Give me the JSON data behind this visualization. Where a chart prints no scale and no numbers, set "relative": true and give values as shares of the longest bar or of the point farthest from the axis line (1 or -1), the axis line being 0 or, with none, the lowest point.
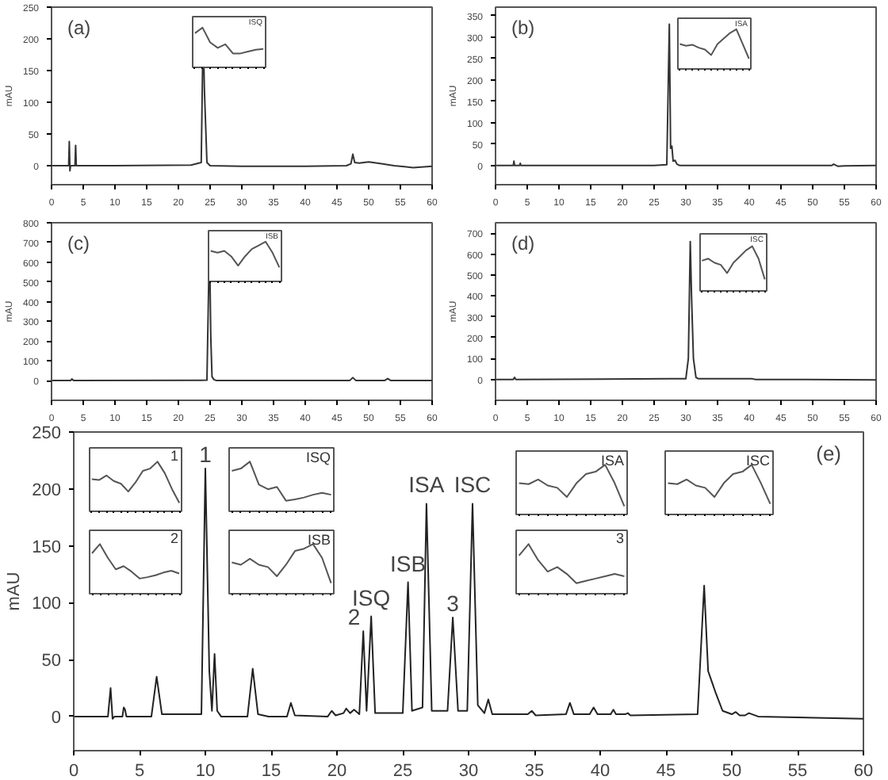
{
  "chart_data": [
    {
      "type": "line",
      "title": "(a)",
      "ylabel": "mAU",
      "xlim": [
        0,
        60
      ],
      "ylim": [
        -30,
        250
      ],
      "xticks": [
        0,
        5,
        10,
        15,
        20,
        25,
        30,
        35,
        40,
        45,
        50,
        55,
        60
      ],
      "yticks": [
        0,
        50,
        100,
        150,
        200,
        250
      ],
      "color": "#333333",
      "x": [
        0,
        2.7,
        2.8,
        2.9,
        3.0,
        3.7,
        3.8,
        3.9,
        10,
        22,
        23.6,
        23.9,
        24.1,
        24.5,
        25,
        30,
        40,
        46.5,
        47.2,
        47.5,
        47.8,
        48.5,
        50,
        52,
        54,
        57,
        60
      ],
      "values": [
        0,
        0,
        38,
        -8,
        0,
        0,
        32,
        0,
        0,
        1,
        5,
        218,
        120,
        5,
        0,
        -1,
        -1,
        0,
        3,
        18,
        5,
        4,
        6,
        3,
        0,
        -3,
        -1
      ]
    },
    {
      "type": "line",
      "relative": true,
      "title": "ISQ",
      "color": "#555555",
      "categories": [
        null,
        null,
        null,
        null,
        null,
        null,
        null,
        null,
        null,
        null
      ],
      "values": [
        0.85,
        1.0,
        0.6,
        0.45,
        0.55,
        0.3,
        0.3,
        0.35,
        0.4,
        0.42
      ]
    },
    {
      "type": "line",
      "title": "(b)",
      "ylabel": "mAU",
      "xlim": [
        0,
        60
      ],
      "ylim": [
        -45,
        370
      ],
      "xticks": [
        0,
        5,
        10,
        15,
        20,
        25,
        30,
        35,
        40,
        45,
        50,
        55,
        60
      ],
      "yticks": [
        0,
        50,
        100,
        150,
        200,
        250,
        300,
        350
      ],
      "color": "#333333",
      "x": [
        0,
        2.8,
        2.9,
        3.0,
        3.8,
        3.9,
        4,
        20,
        25,
        27,
        27.4,
        27.6,
        27.8,
        28,
        28.3,
        28.6,
        29,
        40,
        53,
        53.3,
        54,
        55,
        60
      ],
      "values": [
        0,
        0,
        10,
        0,
        0,
        5,
        0,
        0,
        0,
        2,
        330,
        40,
        45,
        10,
        12,
        3,
        0,
        0,
        0,
        3,
        -2,
        -1,
        0
      ]
    },
    {
      "type": "line",
      "relative": true,
      "title": "ISA",
      "color": "#555555",
      "categories": [
        null,
        null,
        null,
        null,
        null,
        null,
        null,
        null,
        null,
        null,
        null,
        null
      ],
      "values": [
        0.6,
        0.55,
        0.58,
        0.5,
        0.45,
        0.3,
        0.6,
        0.75,
        0.9,
        1.0,
        0.6,
        0.2
      ]
    },
    {
      "type": "line",
      "title": "(c)",
      "ylabel": "mAU",
      "xlim": [
        0,
        60
      ],
      "ylim": [
        -100,
        800
      ],
      "xticks": [
        0,
        5,
        10,
        15,
        20,
        25,
        30,
        35,
        40,
        45,
        50,
        55,
        60
      ],
      "yticks": [
        0,
        100,
        200,
        300,
        400,
        500,
        600,
        700,
        800
      ],
      "color": "#333333",
      "x": [
        0,
        3,
        3.2,
        3.5,
        4,
        24.5,
        24.9,
        25.1,
        25.3,
        25.6,
        26,
        47,
        47.5,
        48,
        52.5,
        53,
        53.5,
        60
      ],
      "values": [
        0,
        0,
        8,
        0,
        0,
        2,
        720,
        230,
        20,
        5,
        0,
        0,
        15,
        0,
        0,
        10,
        0,
        0
      ]
    },
    {
      "type": "line",
      "relative": true,
      "title": "ISB",
      "color": "#555555",
      "categories": [
        null,
        null,
        null,
        null,
        null,
        null,
        null,
        null,
        null,
        null,
        null
      ],
      "values": [
        0.75,
        0.7,
        0.75,
        0.6,
        0.35,
        0.6,
        0.8,
        0.9,
        1.0,
        0.7,
        0.3
      ]
    },
    {
      "type": "line",
      "title": "(d)",
      "ylabel": "mAU",
      "xlim": [
        0,
        60
      ],
      "ylim": [
        -100,
        750
      ],
      "xticks": [
        0,
        5,
        10,
        15,
        20,
        25,
        30,
        35,
        40,
        45,
        50,
        55,
        60
      ],
      "yticks": [
        0,
        100,
        200,
        300,
        400,
        500,
        600,
        700
      ],
      "color": "#333333",
      "x": [
        0,
        2.8,
        3,
        3.2,
        27.5,
        30,
        30.4,
        30.7,
        30.9,
        31.2,
        31.6,
        32,
        40.5,
        41,
        60
      ],
      "values": [
        0,
        0,
        10,
        0,
        3,
        3,
        100,
        660,
        400,
        100,
        10,
        3,
        3,
        0,
        -2
      ]
    },
    {
      "type": "line",
      "relative": true,
      "title": "ISC",
      "color": "#555555",
      "categories": [
        null,
        null,
        null,
        null,
        null,
        null,
        null,
        null,
        null,
        null,
        null
      ],
      "values": [
        0.65,
        0.7,
        0.6,
        0.55,
        0.35,
        0.6,
        0.75,
        0.9,
        1.0,
        0.7,
        0.2
      ]
    },
    {
      "type": "line",
      "title": "(e)",
      "ylabel": "mAU",
      "xlim": [
        0,
        60
      ],
      "ylim": [
        -30,
        250
      ],
      "xticks": [
        0,
        5,
        10,
        15,
        20,
        25,
        30,
        35,
        40,
        45,
        50,
        55,
        60
      ],
      "yticks": [
        0,
        50,
        100,
        150,
        200,
        250
      ],
      "color": "#222222",
      "x": [
        0,
        2.6,
        2.8,
        2.95,
        3.1,
        3.7,
        3.8,
        3.9,
        4.0,
        5.9,
        6.3,
        6.7,
        9.7,
        10.0,
        10.2,
        10.3,
        10.5,
        10.7,
        10.9,
        11.2,
        13.2,
        13.6,
        14,
        14.8,
        16.2,
        16.5,
        16.8,
        19.3,
        19.6,
        19.9,
        20.5,
        20.7,
        21.0,
        21.3,
        21.7,
        22.0,
        22.25,
        22.6,
        22.9,
        25.0,
        25.4,
        25.7,
        26.5,
        26.8,
        27.2,
        28.4,
        28.8,
        29.2,
        29.9,
        30.3,
        30.7,
        31.2,
        31.5,
        31.8,
        34.5,
        34.8,
        35.1,
        37.4,
        37.7,
        38.0,
        39.2,
        39.5,
        39.8,
        40.8,
        41.0,
        41.2,
        41.9,
        42.1,
        42.3,
        47.4,
        47.9,
        48.2,
        48.5,
        48.8,
        49.3,
        50.0,
        50.3,
        50.6,
        51,
        51.3,
        52,
        60
      ],
      "values": [
        0,
        0,
        25,
        -2,
        0,
        0,
        8,
        6,
        0,
        0,
        35,
        2,
        2,
        218,
        100,
        40,
        5,
        55,
        5,
        0,
        0,
        42,
        2,
        0,
        0,
        12,
        1,
        0,
        5,
        1,
        3,
        7,
        3,
        6,
        2,
        75,
        5,
        88,
        3,
        3,
        118,
        5,
        8,
        187,
        5,
        5,
        87,
        5,
        5,
        187,
        10,
        3,
        15,
        2,
        2,
        5,
        1,
        2,
        12,
        2,
        2,
        8,
        2,
        2,
        6,
        2,
        2,
        3,
        1,
        2,
        115,
        40,
        30,
        20,
        5,
        2,
        4,
        1,
        1,
        3,
        0,
        -2
      ],
      "annotations": [
        {
          "text": "1",
          "x": 10.0,
          "y": 218
        },
        {
          "text": "2",
          "x": 22.0,
          "y": 75
        },
        {
          "text": "ISQ",
          "x": 22.6,
          "y": 88
        },
        {
          "text": "ISB",
          "x": 25.4,
          "y": 118
        },
        {
          "text": "ISA",
          "x": 26.8,
          "y": 187
        },
        {
          "text": "3",
          "x": 28.8,
          "y": 87
        },
        {
          "text": "ISC",
          "x": 30.3,
          "y": 187
        }
      ]
    },
    {
      "type": "line",
      "relative": true,
      "title": "1",
      "color": "#555555",
      "categories": [
        null,
        null,
        null,
        null,
        null,
        null,
        null,
        null,
        null,
        null,
        null,
        null,
        null
      ],
      "values": [
        0.62,
        0.6,
        0.7,
        0.58,
        0.52,
        0.35,
        0.55,
        0.8,
        0.85,
        1.0,
        0.75,
        0.4,
        0.1
      ]
    },
    {
      "type": "line",
      "relative": true,
      "title": "ISQ",
      "color": "#555555",
      "categories": [
        null,
        null,
        null,
        null,
        null,
        null,
        null,
        null,
        null,
        null,
        null,
        null
      ],
      "values": [
        0.8,
        0.85,
        1.0,
        0.5,
        0.4,
        0.45,
        0.15,
        0.18,
        0.22,
        0.28,
        0.32,
        0.28
      ]
    },
    {
      "type": "line",
      "relative": true,
      "title": "ISA",
      "color": "#555555",
      "categories": [
        null,
        null,
        null,
        null,
        null,
        null,
        null,
        null,
        null,
        null,
        null,
        null
      ],
      "values": [
        0.6,
        0.58,
        0.68,
        0.55,
        0.5,
        0.3,
        0.6,
        0.8,
        0.85,
        1.0,
        0.6,
        0.1
      ]
    },
    {
      "type": "line",
      "relative": true,
      "title": "ISC",
      "color": "#555555",
      "categories": [
        null,
        null,
        null,
        null,
        null,
        null,
        null,
        null,
        null,
        null,
        null,
        null
      ],
      "values": [
        0.6,
        0.58,
        0.68,
        0.55,
        0.5,
        0.3,
        0.6,
        0.8,
        0.85,
        1.0,
        0.6,
        0.15
      ]
    },
    {
      "type": "line",
      "relative": true,
      "title": "2",
      "color": "#555555",
      "categories": [
        null,
        null,
        null,
        null,
        null,
        null,
        null,
        null,
        null,
        null,
        null,
        null
      ],
      "values": [
        0.8,
        1.0,
        0.7,
        0.45,
        0.52,
        0.4,
        0.25,
        0.28,
        0.32,
        0.38,
        0.42,
        0.36
      ]
    },
    {
      "type": "line",
      "relative": true,
      "title": "ISB",
      "color": "#555555",
      "categories": [
        null,
        null,
        null,
        null,
        null,
        null,
        null,
        null,
        null,
        null,
        null,
        null
      ],
      "values": [
        0.6,
        0.55,
        0.68,
        0.55,
        0.5,
        0.3,
        0.55,
        0.85,
        0.9,
        1.0,
        0.7,
        0.15
      ]
    },
    {
      "type": "line",
      "relative": true,
      "title": "3",
      "color": "#555555",
      "categories": [
        null,
        null,
        null,
        null,
        null,
        null,
        null,
        null,
        null,
        null,
        null,
        null
      ],
      "values": [
        0.75,
        1.0,
        0.65,
        0.4,
        0.5,
        0.35,
        0.15,
        0.2,
        0.25,
        0.3,
        0.35,
        0.3
      ]
    }
  ]
}
